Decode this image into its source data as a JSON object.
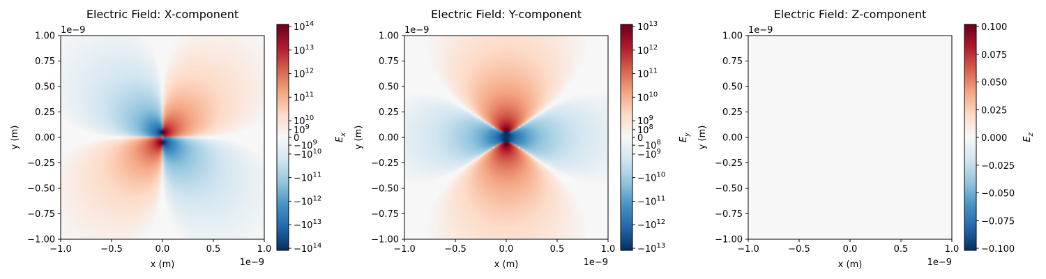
{
  "chart_data": [
    {
      "type": "heatmap",
      "title": "Electric Field: X-component",
      "xlabel": "x (m)",
      "ylabel": "y (m)",
      "x_offset_text": "1e−9",
      "y_offset_text": "1e−9",
      "xlim": [
        -1.0,
        1.0
      ],
      "ylim": [
        -1.0,
        1.0
      ],
      "x_ticks": [
        "−1.0",
        "−0.5",
        "0.0",
        "0.5",
        "1.0"
      ],
      "y_ticks": [
        "1.00",
        "0.75",
        "0.50",
        "0.25",
        "0.00",
        "−0.25",
        "−0.50",
        "−0.75",
        "−1.00"
      ],
      "colormap": "RdBu_r",
      "pattern": "x",
      "colorbar": {
        "label": "E_x",
        "label_main": "E",
        "label_sub": "x",
        "scale": "symlog",
        "range": [
          -100000000000000.0,
          100000000000000.0
        ],
        "ticks": [
          {
            "sign": "",
            "base": "10",
            "exp": "14"
          },
          {
            "sign": "",
            "base": "10",
            "exp": "13"
          },
          {
            "sign": "",
            "base": "10",
            "exp": "12"
          },
          {
            "sign": "",
            "base": "10",
            "exp": "11"
          },
          {
            "sign": "",
            "base": "10",
            "exp": "10"
          },
          {
            "sign": "",
            "base": "10",
            "exp": "9"
          },
          {
            "sign": "",
            "base": "0",
            "exp": ""
          },
          {
            "sign": "−",
            "base": "10",
            "exp": "9"
          },
          {
            "sign": "−",
            "base": "10",
            "exp": "10"
          },
          {
            "sign": "−",
            "base": "10",
            "exp": "11"
          },
          {
            "sign": "−",
            "base": "10",
            "exp": "12"
          },
          {
            "sign": "−",
            "base": "10",
            "exp": "13"
          },
          {
            "sign": "−",
            "base": "10",
            "exp": "14"
          }
        ]
      }
    },
    {
      "type": "heatmap",
      "title": "Electric Field: Y-component",
      "xlabel": "x (m)",
      "ylabel": "y (m)",
      "x_offset_text": "1e−9",
      "y_offset_text": "1e−9",
      "xlim": [
        -1.0,
        1.0
      ],
      "ylim": [
        -1.0,
        1.0
      ],
      "x_ticks": [
        "−1.0",
        "−0.5",
        "0.0",
        "0.5",
        "1.0"
      ],
      "y_ticks": [
        "1.00",
        "0.75",
        "0.50",
        "0.25",
        "0.00",
        "−0.25",
        "−0.50",
        "−0.75",
        "−1.00"
      ],
      "colormap": "RdBu_r",
      "pattern": "y",
      "colorbar": {
        "label": "E_y",
        "label_main": "E",
        "label_sub": "y",
        "scale": "symlog",
        "range": [
          -10000000000000.0,
          10000000000000.0
        ],
        "ticks": [
          {
            "sign": "",
            "base": "10",
            "exp": "13"
          },
          {
            "sign": "",
            "base": "10",
            "exp": "12"
          },
          {
            "sign": "",
            "base": "10",
            "exp": "11"
          },
          {
            "sign": "",
            "base": "10",
            "exp": "10"
          },
          {
            "sign": "",
            "base": "10",
            "exp": "9"
          },
          {
            "sign": "",
            "base": "10",
            "exp": "8"
          },
          {
            "sign": "",
            "base": "0",
            "exp": ""
          },
          {
            "sign": "−",
            "base": "10",
            "exp": "8"
          },
          {
            "sign": "−",
            "base": "10",
            "exp": "9"
          },
          {
            "sign": "−",
            "base": "10",
            "exp": "10"
          },
          {
            "sign": "−",
            "base": "10",
            "exp": "11"
          },
          {
            "sign": "−",
            "base": "10",
            "exp": "12"
          },
          {
            "sign": "−",
            "base": "10",
            "exp": "13"
          }
        ]
      }
    },
    {
      "type": "heatmap",
      "title": "Electric Field: Z-component",
      "xlabel": "x (m)",
      "ylabel": "y (m)",
      "x_offset_text": "1e−9",
      "y_offset_text": "1e−9",
      "xlim": [
        -1.0,
        1.0
      ],
      "ylim": [
        -1.0,
        1.0
      ],
      "x_ticks": [
        "−1.0",
        "−0.5",
        "0.0",
        "0.5",
        "1.0"
      ],
      "y_ticks": [
        "1.00",
        "0.75",
        "0.50",
        "0.25",
        "0.00",
        "−0.25",
        "−0.50",
        "−0.75",
        "−1.00"
      ],
      "colormap": "RdBu_r",
      "pattern": "zero",
      "uniform_value": 0.0,
      "colorbar": {
        "label": "E_z",
        "label_main": "E",
        "label_sub": "z",
        "scale": "linear",
        "range": [
          -0.1,
          0.1
        ],
        "ticks": [
          {
            "sign": "",
            "base": "0.100",
            "exp": ""
          },
          {
            "sign": "",
            "base": "0.075",
            "exp": ""
          },
          {
            "sign": "",
            "base": "0.050",
            "exp": ""
          },
          {
            "sign": "",
            "base": "0.025",
            "exp": ""
          },
          {
            "sign": "",
            "base": "0.000",
            "exp": ""
          },
          {
            "sign": "",
            "base": "−0.025",
            "exp": ""
          },
          {
            "sign": "",
            "base": "−0.050",
            "exp": ""
          },
          {
            "sign": "",
            "base": "−0.075",
            "exp": ""
          },
          {
            "sign": "",
            "base": "−0.100",
            "exp": ""
          }
        ]
      }
    }
  ]
}
